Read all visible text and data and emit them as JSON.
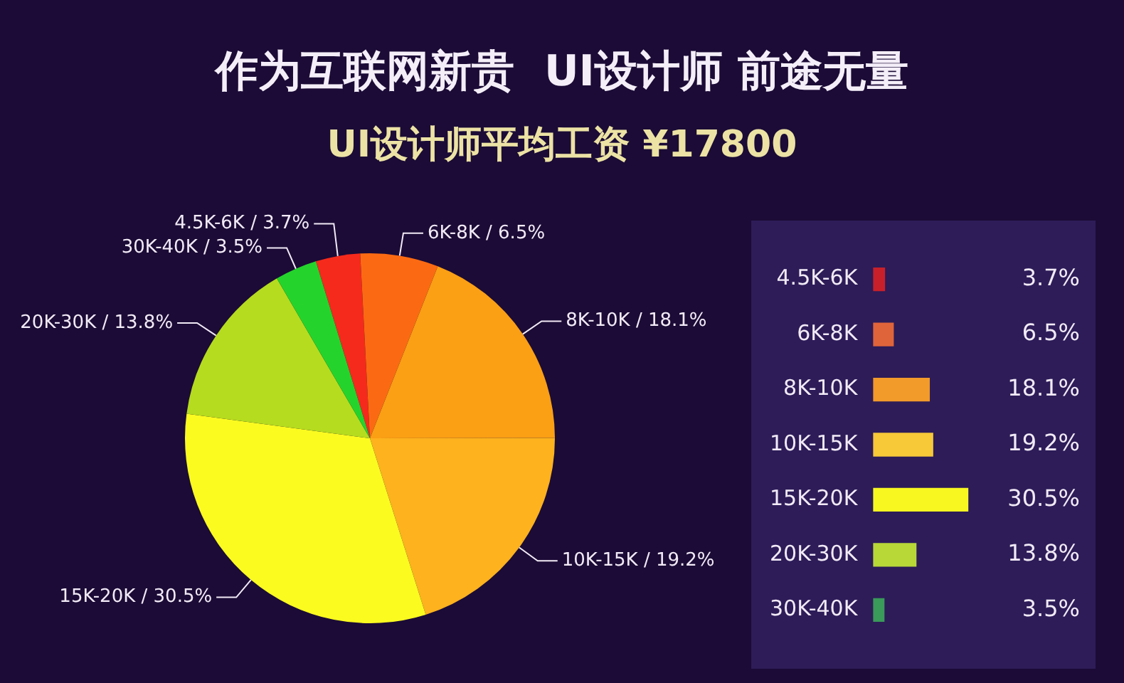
{
  "chart_data": [
    {
      "type": "pie",
      "title": "作为互联网新贵  UI设计师 前途无量",
      "subtitle": "UI设计师平均工资 ¥17800",
      "categories": [
        "4.5K-6K / 3.7%",
        "6K-8K / 6.5%",
        "8K-10K / 18.1%",
        "10K-15K / 19.2%",
        "15K-20K / 30.5%",
        "20K-30K / 13.8%",
        "30K-40K / 3.5%"
      ],
      "values": [
        3.7,
        6.5,
        18.1,
        19.2,
        30.5,
        13.8,
        3.5
      ],
      "colors": [
        "#f52a1c",
        "#fb6a12",
        "#fb9f14",
        "#fdb21e",
        "#fbfb20",
        "#b5dc1e",
        "#24d42c"
      ],
      "legend": false
    },
    {
      "type": "bar",
      "orientation": "horizontal",
      "tick_labels": "y",
      "categories": [
        "4.5K-6K",
        "6K-8K",
        "8K-10K",
        "10K-15K",
        "15K-20K",
        "20K-30K",
        "30K-40K"
      ],
      "values": [
        3.7,
        6.5,
        18.1,
        19.2,
        30.5,
        13.8,
        3.5
      ],
      "colors": [
        "#c8202a",
        "#e0643a",
        "#f29a2a",
        "#f7c838",
        "#f8f820",
        "#b8d838",
        "#3a9a5a"
      ],
      "value_labels": [
        "3.7%",
        "6.5%",
        "18.1%",
        "19.2%",
        "30.5%",
        "13.8%",
        "3.5%"
      ],
      "legend": false
    }
  ]
}
